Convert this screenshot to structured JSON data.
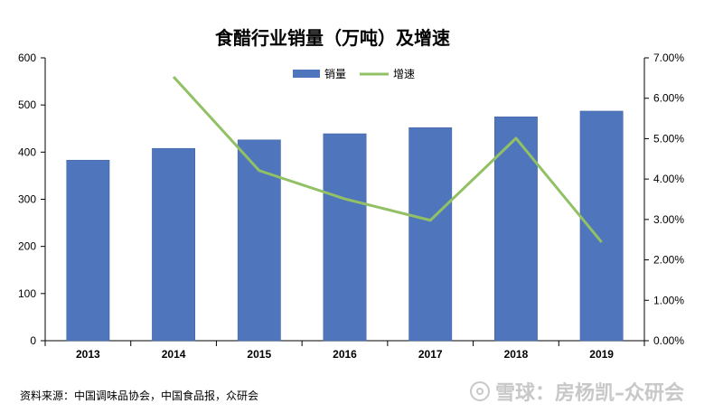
{
  "chart_data": {
    "type": "bar",
    "title": "食醋行业销量（万吨）及增速",
    "categories": [
      "2013",
      "2014",
      "2015",
      "2016",
      "2017",
      "2018",
      "2019"
    ],
    "series": [
      {
        "name": "销量",
        "type": "bar",
        "axis": "left",
        "color": "#4f76bd",
        "values": [
          383,
          408,
          426,
          439,
          452,
          475,
          487
        ]
      },
      {
        "name": "增速",
        "type": "line",
        "axis": "right",
        "color": "#91c164",
        "values": [
          null,
          0.0653,
          0.0421,
          0.0351,
          0.0298,
          0.0501,
          0.0244
        ]
      }
    ],
    "y_left": {
      "min": 0,
      "max": 600,
      "step": 100,
      "ticks": [
        "0",
        "100",
        "200",
        "300",
        "400",
        "500",
        "600"
      ]
    },
    "y_right": {
      "min": 0,
      "max": 0.07,
      "step": 0.01,
      "ticks": [
        "0.00%",
        "1.00%",
        "2.00%",
        "3.00%",
        "4.00%",
        "5.00%",
        "6.00%",
        "7.00%"
      ]
    },
    "legend": {
      "position": "top-center",
      "items": [
        "销量",
        "增速"
      ]
    },
    "grid": false
  },
  "source_note": "资料来源：中国调味品协会，中国食品报，众研会",
  "watermark_text": "雪球：房杨凯–众研会"
}
